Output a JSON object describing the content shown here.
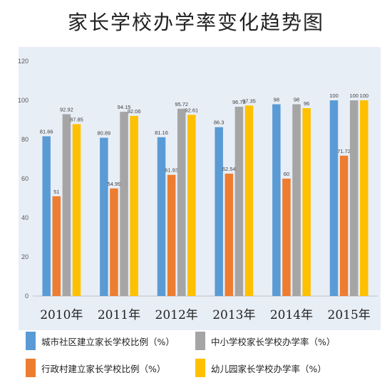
{
  "chart_data": {
    "type": "bar",
    "title": "家长学校办学率变化趋势图",
    "categories": [
      "2010年",
      "2011年",
      "2012年",
      "2013年",
      "2014年",
      "2015年"
    ],
    "series": [
      {
        "name": "城市社区建立家长学校比例（%）",
        "color": "#5b9bd5",
        "values": [
          81.66,
          80.89,
          81.16,
          86.3,
          98,
          100
        ],
        "labels": [
          "81.66",
          "80.89",
          "81.16",
          "86.3",
          "98",
          "100"
        ]
      },
      {
        "name": "行政村建立家长学校比例（%）",
        "color": "#ed7d31",
        "values": [
          51,
          54.99,
          61.93,
          62.54,
          60,
          71.72
        ],
        "labels": [
          "51",
          "54.99",
          "61.93",
          "62.54",
          "60",
          "71.72"
        ]
      },
      {
        "name": "中小学校家长学校办学率（%）",
        "color": "#a5a5a5",
        "values": [
          92.92,
          94.15,
          95.72,
          96.73,
          98,
          100
        ],
        "labels": [
          "92.92",
          "94.15",
          "95.72",
          "96.73",
          "98",
          "100"
        ]
      },
      {
        "name": "幼儿园家长学校办学率（%）",
        "color": "#ffc000",
        "values": [
          87.85,
          92.06,
          92.61,
          97.35,
          96,
          100
        ],
        "labels": [
          "87.85",
          "92.06",
          "92.61",
          "97.35",
          "96",
          "100"
        ]
      }
    ],
    "ylim": [
      0,
      120
    ],
    "yticks": [
      "0",
      "20",
      "40",
      "60",
      "80",
      "100",
      "120"
    ],
    "grid": false,
    "legend": "bottom"
  }
}
